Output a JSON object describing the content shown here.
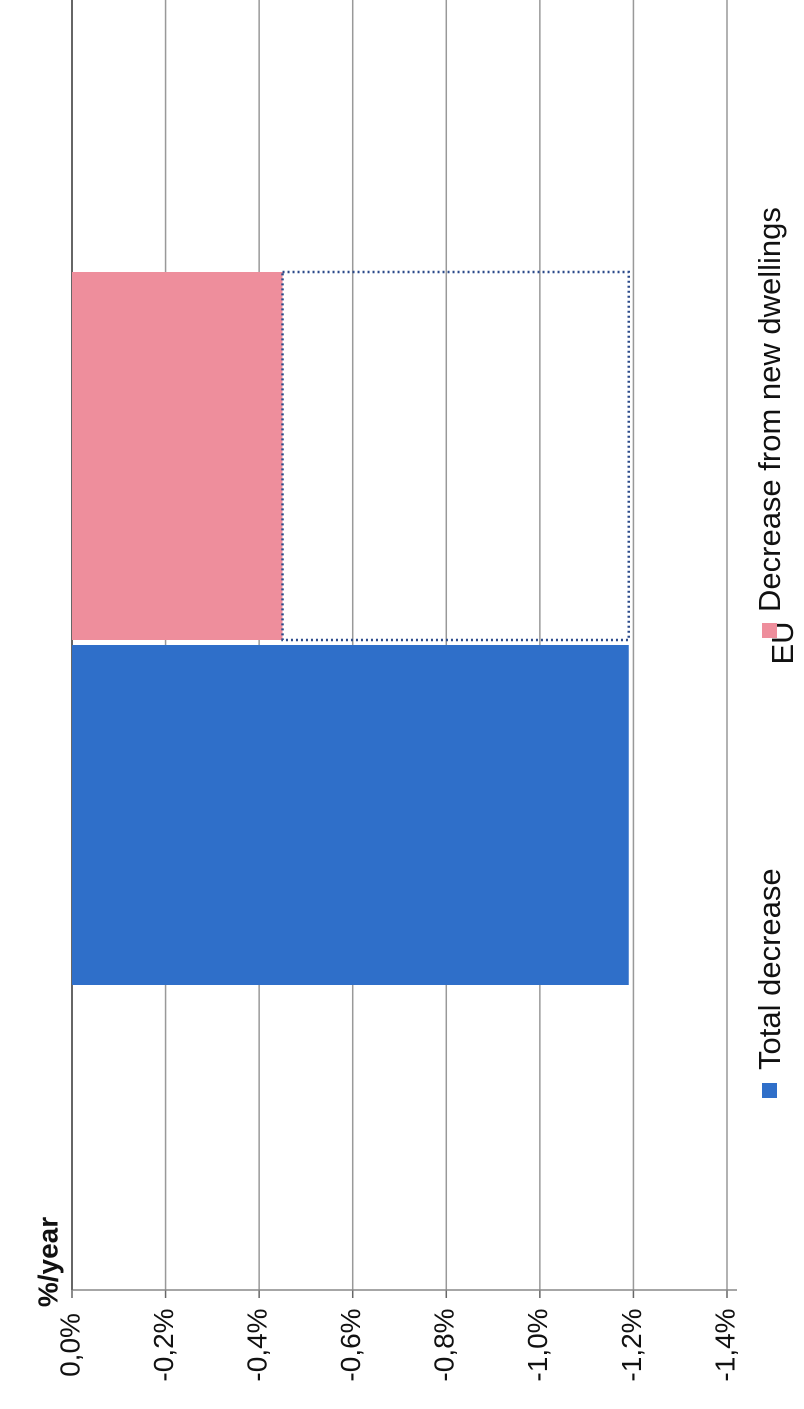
{
  "chart_data": {
    "type": "bar",
    "orientation": "horizontal",
    "y_label": "%/year",
    "categories": [
      "EU"
    ],
    "series": [
      {
        "name": "Total decrease",
        "color": "#2f6fc9",
        "values": [
          -1.19
        ]
      },
      {
        "name": "Decrease from new dwellings",
        "color": "#ee8e9c",
        "values": [
          -0.45
        ]
      }
    ],
    "ylim": [
      0,
      -1.4
    ],
    "yticks": [
      {
        "value": 0,
        "label": "0,0%"
      },
      {
        "value": -0.2,
        "label": "-0,2%"
      },
      {
        "value": -0.4,
        "label": "-0,4%"
      },
      {
        "value": -0.6,
        "label": "-0,6%"
      },
      {
        "value": -0.8,
        "label": "-0,8%"
      },
      {
        "value": -1.0,
        "label": "-1,0%"
      },
      {
        "value": -1.2,
        "label": "-1,2%"
      },
      {
        "value": -1.4,
        "label": "-1,4%"
      }
    ],
    "grid": true
  }
}
